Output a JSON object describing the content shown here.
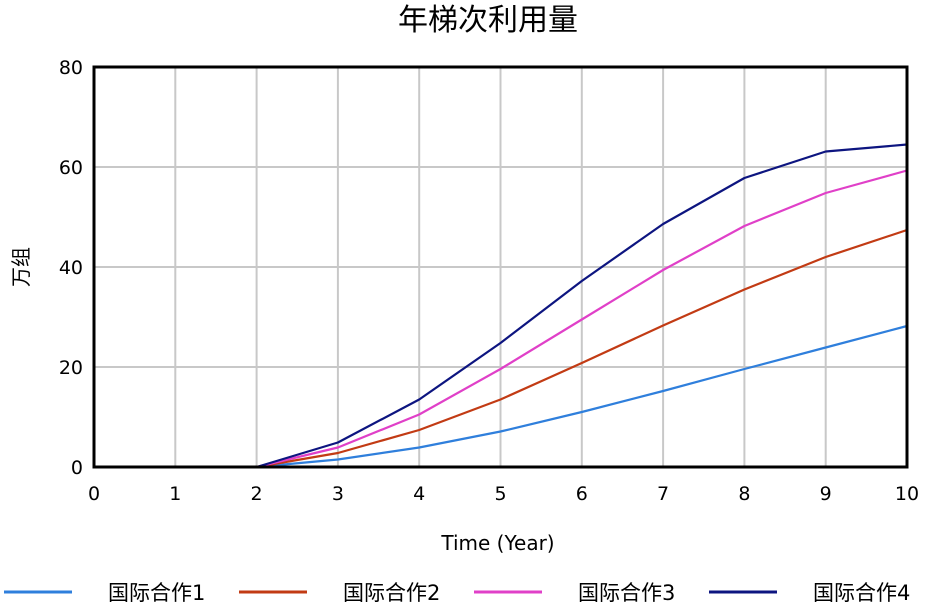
{
  "chart_data": {
    "type": "line",
    "title": "年梯次利用量",
    "xlabel": "Time (Year)",
    "ylabel": "万组",
    "x": [
      0,
      1,
      2,
      3,
      4,
      5,
      6,
      7,
      8,
      9,
      10
    ],
    "xlim": [
      0,
      10
    ],
    "ylim": [
      0,
      80
    ],
    "xticks": [
      0,
      1,
      2,
      3,
      4,
      5,
      6,
      7,
      8,
      9,
      10
    ],
    "yticks": [
      0,
      20,
      40,
      60,
      80
    ],
    "grid": true,
    "legend_position": "bottom",
    "series": [
      {
        "name": "国际合作1",
        "color": "#2f7fdc",
        "values": [
          0,
          0,
          0,
          1.5,
          3.9,
          7.1,
          11.0,
          15.2,
          19.6,
          23.9,
          28.2
        ]
      },
      {
        "name": "国际合作2",
        "color": "#c23b14",
        "values": [
          0,
          0,
          0,
          2.8,
          7.4,
          13.5,
          20.8,
          28.3,
          35.5,
          42.0,
          47.4
        ]
      },
      {
        "name": "国际合作3",
        "color": "#e040c8",
        "values": [
          0,
          0,
          0,
          3.9,
          10.5,
          19.6,
          29.5,
          39.4,
          48.2,
          54.8,
          59.3
        ]
      },
      {
        "name": "国际合作4",
        "color": "#0d1580",
        "values": [
          0,
          0,
          0,
          4.9,
          13.5,
          24.8,
          37.2,
          48.6,
          57.8,
          63.1,
          64.5
        ]
      }
    ]
  }
}
